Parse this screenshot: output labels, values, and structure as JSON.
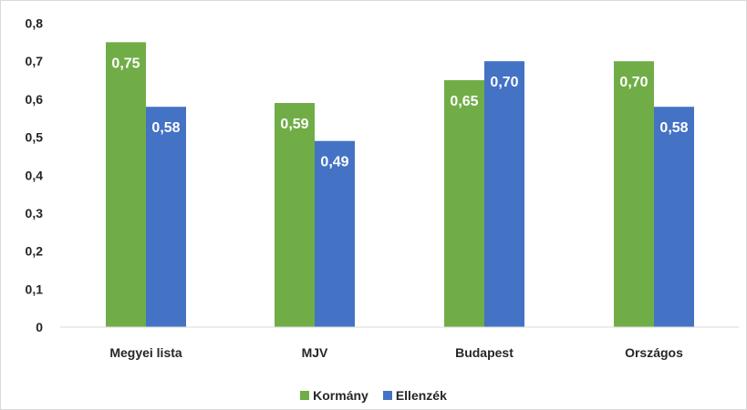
{
  "chart_data": {
    "type": "bar",
    "categories": [
      "Megyei lista",
      "MJV",
      "Budapest",
      "Országos"
    ],
    "series": [
      {
        "name": "Kormány",
        "values": [
          0.75,
          0.59,
          0.65,
          0.7
        ],
        "labels": [
          "0,75",
          "0,59",
          "0,65",
          "0,70"
        ],
        "color": "#70ad47"
      },
      {
        "name": "Ellenzék",
        "values": [
          0.58,
          0.49,
          0.7,
          0.58
        ],
        "labels": [
          "0,58",
          "0,49",
          "0,70",
          "0,58"
        ],
        "color": "#4472c4"
      }
    ],
    "y_ticks": [
      0,
      0.1,
      0.2,
      0.3,
      0.4,
      0.5,
      0.6,
      0.7,
      0.8
    ],
    "y_tick_labels": [
      "0",
      "0,1",
      "0,2",
      "0,3",
      "0,4",
      "0,5",
      "0,6",
      "0,7",
      "0,8"
    ],
    "ylim": [
      0,
      0.8
    ],
    "title": "",
    "xlabel": "",
    "ylabel": "",
    "grid": false,
    "legend_position": "bottom"
  }
}
